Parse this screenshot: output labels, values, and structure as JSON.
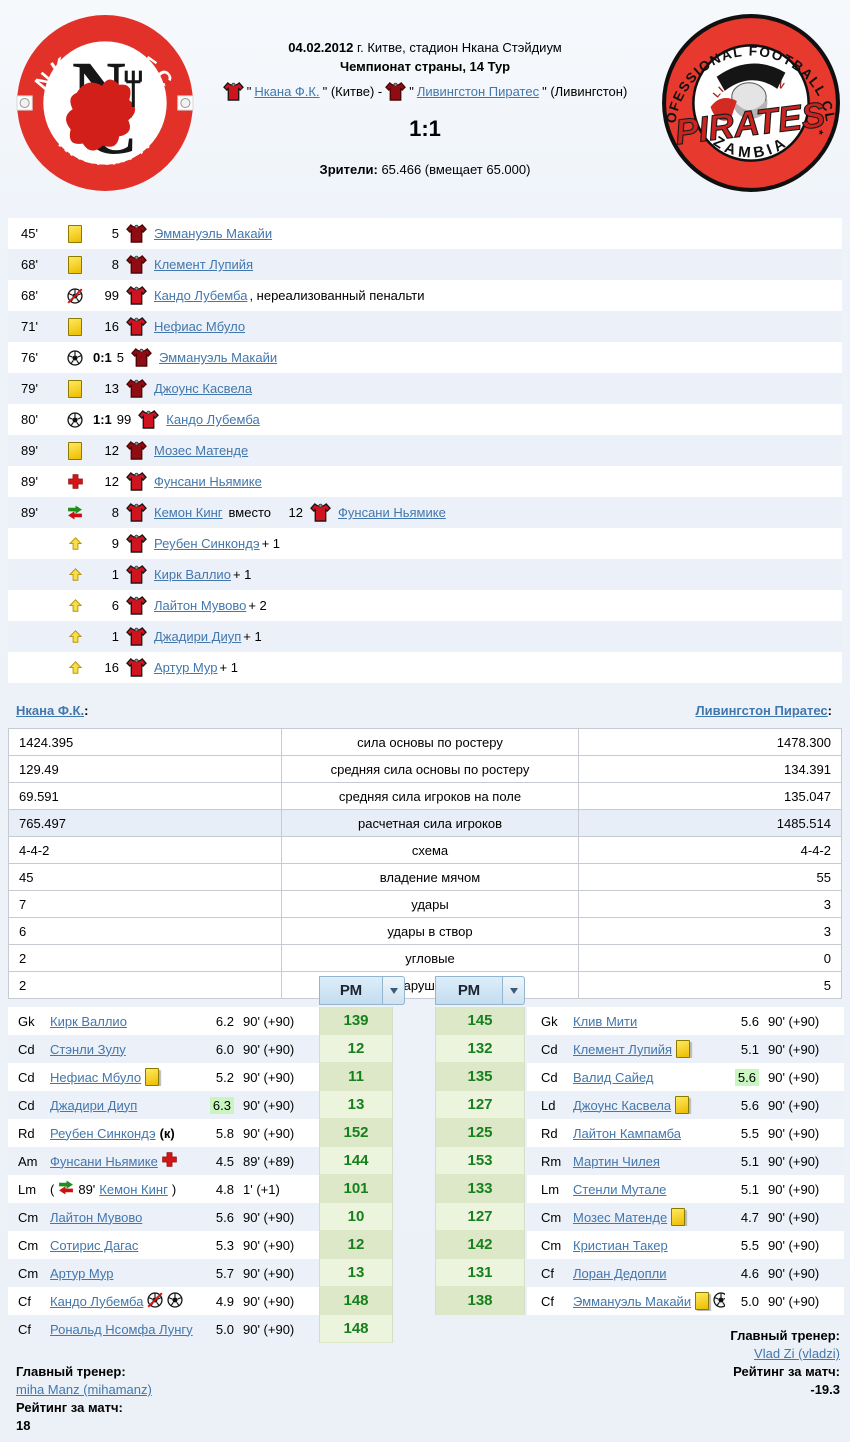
{
  "header": {
    "date_bold": "04.02.2012",
    "date_rest": " г. Китве, стадион Нкана Стэйдиум",
    "tournament": "Чемпионат страны, 14 Тур",
    "home_team": "Нкана Ф.К.",
    "home_city": "(Китве)",
    "separator": "-",
    "away_team": "Ливингстон Пиратес",
    "away_city": "(Ливингстон)",
    "score": "1:1",
    "attendance_label": "Зрители:",
    "attendance_value": "65.466 (вмещает 65.000)"
  },
  "logos": {
    "left": {
      "top": "NKANA FC",
      "bottom": "KALAMPA"
    },
    "right": {
      "top": "PROFESSIONAL FOOTBALL CLUB",
      "bottom": "ZAMBIA",
      "center": "PIRATES",
      "small": "LIVINGSTON"
    }
  },
  "events": [
    {
      "minute": "45'",
      "icon": "yellow-card",
      "number": "5",
      "team": "away",
      "player": "Эммануэль Макайи"
    },
    {
      "minute": "68'",
      "icon": "yellow-card",
      "number": "8",
      "team": "away",
      "player": "Клемент Лупийя"
    },
    {
      "minute": "68'",
      "icon": "missed-penalty",
      "number": "99",
      "team": "home",
      "player": "Кандо Лубемба",
      "suffix": ", нереализованный пенальти"
    },
    {
      "minute": "71'",
      "icon": "yellow-card",
      "number": "16",
      "team": "home",
      "player": "Нефиас Мбуло"
    },
    {
      "minute": "76'",
      "icon": "goal",
      "score": "0:1",
      "number": "5",
      "team": "away",
      "player": "Эммануэль Макайи"
    },
    {
      "minute": "79'",
      "icon": "yellow-card",
      "number": "13",
      "team": "away",
      "player": "Джоунс Касвела"
    },
    {
      "minute": "80'",
      "icon": "goal",
      "score": "1:1",
      "number": "99",
      "team": "home",
      "player": "Кандо Лубемба"
    },
    {
      "minute": "89'",
      "icon": "yellow-card",
      "number": "12",
      "team": "away",
      "player": "Мозес Матенде"
    },
    {
      "minute": "89'",
      "icon": "injury",
      "number": "12",
      "team": "home",
      "player": "Фунсани Ньямике"
    },
    {
      "minute": "89'",
      "icon": "substitution",
      "number": "8",
      "team": "home",
      "player": "Кемон Кинг",
      "joiner": "вместо",
      "number2": "12",
      "team2": "home",
      "player2": "Фунсани Ньямике"
    },
    {
      "icon": "bench",
      "number": "9",
      "team": "home",
      "player": "Реубен Синкондэ",
      "suffix": " + 1"
    },
    {
      "icon": "bench",
      "number": "1",
      "team": "home",
      "player": "Кирк Валлио",
      "suffix": " + 1"
    },
    {
      "icon": "bench",
      "number": "6",
      "team": "home",
      "player": "Лайтон Мувово",
      "suffix": " + 2"
    },
    {
      "icon": "bench",
      "number": "1",
      "team": "home",
      "player": "Джадири Диуп",
      "suffix": " + 1"
    },
    {
      "icon": "bench",
      "number": "16",
      "team": "home",
      "player": "Артур Мур",
      "suffix": " + 1"
    }
  ],
  "stats": {
    "home_label": "Нкана Ф.К.",
    "away_label": "Ливингстон Пиратес",
    "colon": ":",
    "rows": [
      {
        "home": "1424.395",
        "label": "сила основы по ростеру",
        "away": "1478.300"
      },
      {
        "home": "129.49",
        "label": "средняя сила основы по ростеру",
        "away": "134.391"
      },
      {
        "home": "69.591",
        "label": "средняя сила игроков на поле",
        "away": "135.047"
      },
      {
        "home": "765.497",
        "label": "расчетная сила игроков",
        "away": "1485.514",
        "highlight": true
      },
      {
        "home": "4-4-2",
        "label": "схема",
        "away": "4-4-2"
      },
      {
        "home": "45",
        "label": "владение мячом",
        "away": "55"
      },
      {
        "home": "7",
        "label": "удары",
        "away": "3"
      },
      {
        "home": "6",
        "label": "удары в створ",
        "away": "3"
      },
      {
        "home": "2",
        "label": "угловые",
        "away": "0"
      },
      {
        "home": "2",
        "label": "нарушения",
        "away": "5"
      }
    ]
  },
  "pm": {
    "header": "РМ",
    "left": [
      "139",
      "12",
      "11",
      "13",
      "152",
      "144",
      "101",
      "10",
      "12",
      "13",
      "148",
      "148"
    ],
    "right": [
      "145",
      "132",
      "135",
      "127",
      "125",
      "153",
      "133",
      "127",
      "142",
      "131",
      "138"
    ]
  },
  "lineup_left": [
    {
      "pos": "Gk",
      "name": "Кирк Валлио",
      "rating": "6.2",
      "minutes": "90' (+90)"
    },
    {
      "pos": "Cd",
      "name": "Стэнли Зулу",
      "rating": "6.0",
      "minutes": "90' (+90)"
    },
    {
      "pos": "Cd",
      "name": "Нефиас Мбуло",
      "icons": [
        "yellow-card"
      ],
      "rating": "5.2",
      "minutes": "90' (+90)"
    },
    {
      "pos": "Cd",
      "name": "Джадири Диуп",
      "rating": "6.3",
      "highlight": true,
      "minutes": "90' (+90)"
    },
    {
      "pos": "Rd",
      "name": "Реубен Синкондэ",
      "captain": "(к)",
      "rating": "5.8",
      "minutes": "90' (+90)"
    },
    {
      "pos": "Am",
      "name": "Фунсани Ньямике",
      "icons": [
        "injury"
      ],
      "rating": "4.5",
      "minutes": "89' (+89)"
    },
    {
      "pos": "Lm",
      "name": "Кемон Кинг",
      "sub_in": "89'",
      "rating": "4.8",
      "minutes": "1' (+1)"
    },
    {
      "pos": "Cm",
      "name": "Лайтон Мувово",
      "rating": "5.6",
      "minutes": "90' (+90)"
    },
    {
      "pos": "Cm",
      "name": "Сотирис Дагас",
      "rating": "5.3",
      "minutes": "90' (+90)"
    },
    {
      "pos": "Cm",
      "name": "Артур Мур",
      "rating": "5.7",
      "minutes": "90' (+90)"
    },
    {
      "pos": "Cf",
      "name": "Кандо Лубемба",
      "icons": [
        "missed-penalty",
        "goal"
      ],
      "rating": "4.9",
      "minutes": "90' (+90)"
    },
    {
      "pos": "Cf",
      "name": "Рональд Нсомфа Лунгу",
      "rating": "5.0",
      "minutes": "90' (+90)"
    }
  ],
  "lineup_right": [
    {
      "pos": "Gk",
      "name": "Клив Мити",
      "rating": "5.6",
      "minutes": "90' (+90)"
    },
    {
      "pos": "Cd",
      "name": "Клемент Лупийя",
      "icons": [
        "yellow-card"
      ],
      "rating": "5.1",
      "minutes": "90' (+90)"
    },
    {
      "pos": "Cd",
      "name": "Валид Сайед",
      "rating": "5.6",
      "highlight": true,
      "minutes": "90' (+90)"
    },
    {
      "pos": "Ld",
      "name": "Джоунс Касвела",
      "icons": [
        "yellow-card"
      ],
      "rating": "5.6",
      "minutes": "90' (+90)"
    },
    {
      "pos": "Rd",
      "name": "Лайтон Кампамба",
      "rating": "5.5",
      "minutes": "90' (+90)"
    },
    {
      "pos": "Rm",
      "name": "Мартин Чилея",
      "rating": "5.1",
      "minutes": "90' (+90)"
    },
    {
      "pos": "Lm",
      "name": "Стенли Мутале",
      "rating": "5.1",
      "minutes": "90' (+90)"
    },
    {
      "pos": "Cm",
      "name": "Мозес Матенде",
      "icons": [
        "yellow-card"
      ],
      "rating": "4.7",
      "minutes": "90' (+90)"
    },
    {
      "pos": "Cm",
      "name": "Кристиан Такер",
      "rating": "5.5",
      "minutes": "90' (+90)"
    },
    {
      "pos": "Cf",
      "name": "Лоран Дедопли",
      "rating": "4.6",
      "minutes": "90' (+90)"
    },
    {
      "pos": "Cf",
      "name": "Эммануэль Макайи",
      "icons": [
        "yellow-card",
        "goal"
      ],
      "rating": "5.0",
      "minutes": "90' (+90)"
    }
  ],
  "footer": {
    "left": {
      "coach_label": "Главный тренер:",
      "coach": "miha Manz (mihamanz)",
      "rating_label": "Рейтинг за матч:",
      "rating": "18"
    },
    "right": {
      "coach_label": "Главный тренер:",
      "coach": "Vlad Zi (vladzi)",
      "rating_label": "Рейтинг за матч:",
      "rating": "-19.3"
    }
  }
}
